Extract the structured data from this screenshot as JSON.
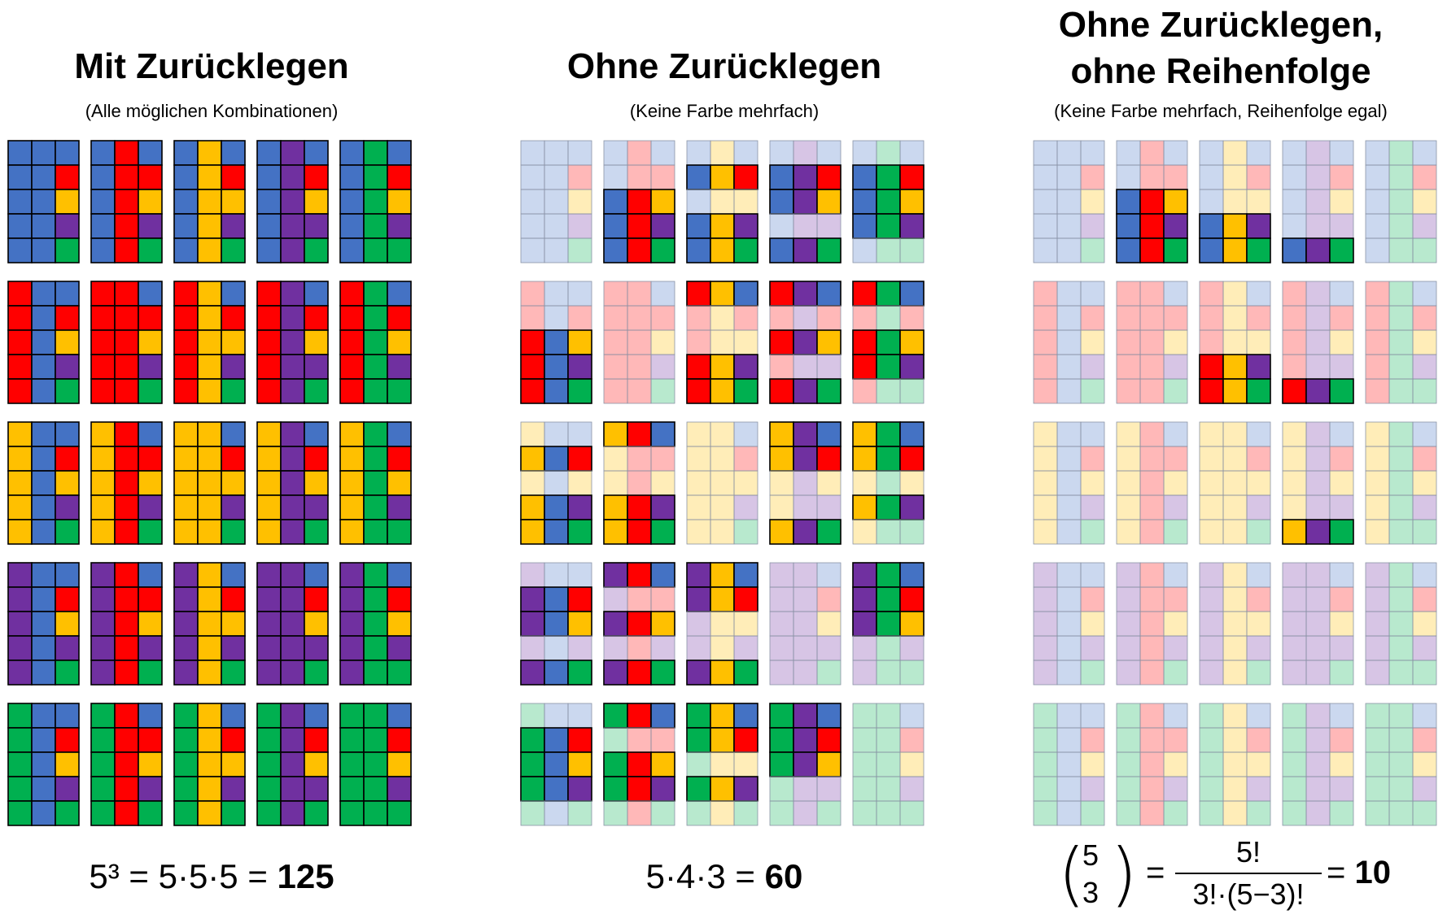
{
  "colors": {
    "blue": "#4472C4",
    "red": "#FF0000",
    "yellow": "#FFC000",
    "purple": "#7030A0",
    "green": "#00B050",
    "fade_opacity": 0.28,
    "faded_stroke": "#8a93a6"
  },
  "panels": [
    {
      "title_line1": "",
      "title_line2": "Mit Zurücklegen",
      "subtitle": "(Alle möglichen Kombinationen)",
      "formula_text": "5³ = 5·5·5 = ",
      "formula_result": "125"
    },
    {
      "title_line1": "",
      "title_line2": "Ohne Zurücklegen",
      "subtitle": "(Keine Farbe mehrfach)",
      "formula_text": "5·4·3 = ",
      "formula_result": "60"
    },
    {
      "title_line1": "Ohne Zurücklegen,",
      "title_line2": "ohne Reihenfolge",
      "subtitle": "(Keine Farbe mehrfach, Reihenfolge egal)",
      "binom_n": "5",
      "binom_k": "3",
      "fraction_numerator": "5!",
      "fraction_denominator": "3!·(5−3)!",
      "formula_result": "10"
    }
  ],
  "grid_rule": {
    "color_order": [
      "blue",
      "red",
      "yellow",
      "purple",
      "green"
    ],
    "blocks_per_panel": 25,
    "rows_per_block": 5,
    "columns_per_row": 3,
    "description_first_color": "block row",
    "description_second_color": "block column",
    "description_third_color": "row within block"
  }
}
